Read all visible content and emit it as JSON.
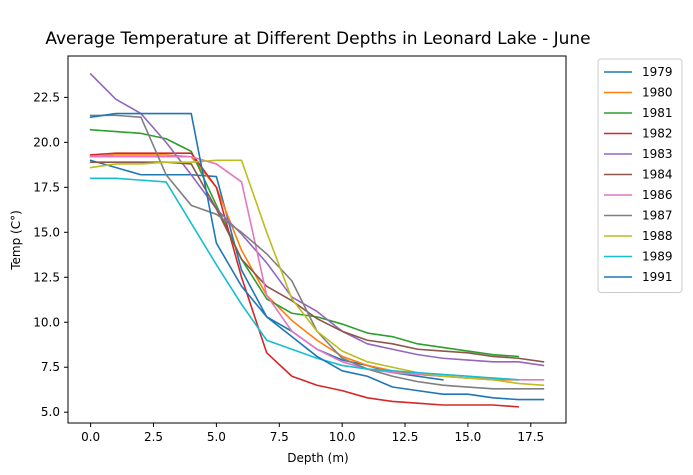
{
  "chart_data": {
    "type": "line",
    "title": "Average Temperature at Different Depths in Leonard Lake - June",
    "xlabel": "Depth (m)",
    "ylabel": "Temp (C°)",
    "xlim": [
      -0.9,
      18.9
    ],
    "ylim": [
      4.4,
      24.8
    ],
    "xticks": [
      0.0,
      2.5,
      5.0,
      7.5,
      10.0,
      12.5,
      15.0,
      17.5
    ],
    "xtick_labels": [
      "0.0",
      "2.5",
      "5.0",
      "7.5",
      "10.0",
      "12.5",
      "15.0",
      "17.5"
    ],
    "yticks": [
      5.0,
      7.5,
      10.0,
      12.5,
      15.0,
      17.5,
      20.0,
      22.5
    ],
    "ytick_labels": [
      "5.0",
      "7.5",
      "10.0",
      "12.5",
      "15.0",
      "17.5",
      "20.0",
      "22.5"
    ],
    "grid": false,
    "legend_position": "outside-right",
    "series": [
      {
        "name": "1979",
        "color": "#1f77b4",
        "x": [
          0,
          1,
          2,
          3,
          4,
          5,
          6,
          7,
          8,
          9,
          10,
          11,
          12,
          13,
          14
        ],
        "y": [
          19.0,
          18.6,
          18.2,
          18.2,
          18.2,
          18.1,
          12.9,
          10.3,
          9.5,
          8.5,
          7.9,
          7.6,
          7.2,
          7.0,
          6.8
        ]
      },
      {
        "name": "1980",
        "color": "#ff7f0e",
        "x": [
          0,
          1,
          2,
          3,
          4,
          5,
          6,
          7,
          8,
          9,
          10,
          11,
          12,
          13,
          14,
          15,
          16,
          17
        ],
        "y": [
          19.2,
          19.3,
          19.3,
          19.3,
          19.2,
          17.5,
          14.0,
          11.5,
          10.1,
          9.0,
          8.1,
          7.6,
          7.3,
          7.1,
          7.0,
          6.9,
          6.8,
          6.8
        ]
      },
      {
        "name": "1981",
        "color": "#2ca02c",
        "x": [
          0,
          1,
          2,
          3,
          4,
          5,
          6,
          7,
          8,
          9,
          10,
          11,
          12,
          13,
          14,
          15,
          16,
          17
        ],
        "y": [
          20.7,
          20.6,
          20.5,
          20.2,
          19.5,
          16.5,
          13.5,
          11.3,
          10.5,
          10.3,
          9.9,
          9.4,
          9.2,
          8.8,
          8.6,
          8.4,
          8.2,
          8.1
        ]
      },
      {
        "name": "1982",
        "color": "#d62728",
        "x": [
          0,
          1,
          2,
          3,
          4,
          5,
          6,
          7,
          8,
          9,
          10,
          11,
          12,
          13,
          14,
          15,
          16,
          17
        ],
        "y": [
          19.3,
          19.4,
          19.4,
          19.4,
          19.4,
          17.5,
          12.5,
          8.3,
          7.0,
          6.5,
          6.2,
          5.8,
          5.6,
          5.5,
          5.4,
          5.4,
          5.4,
          5.3
        ]
      },
      {
        "name": "1983",
        "color": "#9467bd",
        "x": [
          0,
          1,
          2,
          3,
          4,
          5,
          6,
          7,
          8,
          9,
          10,
          11,
          12,
          13,
          14,
          15,
          16,
          17,
          18
        ],
        "y": [
          23.8,
          22.4,
          21.6,
          20.0,
          18.2,
          16.3,
          14.9,
          13.3,
          11.4,
          10.6,
          9.5,
          8.8,
          8.5,
          8.2,
          8.0,
          7.9,
          7.8,
          7.8,
          7.6
        ]
      },
      {
        "name": "1984",
        "color": "#8c564b",
        "x": [
          0,
          1,
          2,
          3,
          4,
          5,
          6,
          7,
          8,
          9,
          10,
          11,
          12,
          13,
          14,
          15,
          16,
          17,
          18
        ],
        "y": [
          18.9,
          18.9,
          18.9,
          18.9,
          18.8,
          16.3,
          13.5,
          12.0,
          11.2,
          10.2,
          9.5,
          9.0,
          8.8,
          8.5,
          8.4,
          8.3,
          8.1,
          8.0,
          7.8
        ]
      },
      {
        "name": "1986",
        "color": "#e377c2",
        "x": [
          0,
          1,
          2,
          3,
          4,
          5,
          6,
          7,
          8,
          9,
          10,
          11,
          12,
          13,
          14,
          15,
          16,
          17,
          18
        ],
        "y": [
          19.2,
          19.2,
          19.2,
          19.2,
          19.2,
          18.8,
          17.8,
          11.5,
          9.5,
          8.5,
          7.8,
          7.4,
          7.2,
          7.1,
          7.0,
          6.9,
          6.9,
          6.8,
          6.8
        ]
      },
      {
        "name": "1987",
        "color": "#7f7f7f",
        "x": [
          0,
          1,
          2,
          3,
          4,
          5,
          6,
          7,
          8,
          9,
          10,
          11,
          12,
          13,
          14,
          15,
          16,
          17,
          18
        ],
        "y": [
          21.5,
          21.5,
          21.4,
          18.2,
          16.5,
          16.0,
          15.0,
          13.8,
          12.3,
          9.5,
          8.0,
          7.4,
          7.0,
          6.7,
          6.5,
          6.4,
          6.3,
          6.3,
          6.3
        ]
      },
      {
        "name": "1988",
        "color": "#bcbd22",
        "x": [
          0,
          1,
          2,
          3,
          4,
          5,
          6,
          7,
          8,
          9,
          10,
          11,
          12,
          13,
          14,
          15,
          16,
          17,
          18
        ],
        "y": [
          18.6,
          18.8,
          18.8,
          18.9,
          18.9,
          19.0,
          19.0,
          15.0,
          11.3,
          9.5,
          8.4,
          7.8,
          7.5,
          7.2,
          7.0,
          6.9,
          6.8,
          6.6,
          6.5
        ]
      },
      {
        "name": "1989",
        "color": "#17becf",
        "x": [
          0,
          1,
          2,
          3,
          4,
          5,
          6,
          7,
          8,
          9,
          10,
          11,
          12,
          13,
          14,
          15,
          16,
          17
        ],
        "y": [
          18.0,
          18.0,
          17.9,
          17.8,
          15.5,
          13.2,
          11.0,
          9.0,
          8.5,
          8.0,
          7.6,
          7.4,
          7.3,
          7.2,
          7.1,
          7.0,
          6.9,
          6.8
        ]
      },
      {
        "name": "1991",
        "color": "#1f77b4",
        "x": [
          0,
          1,
          2,
          3,
          4,
          5,
          6,
          7,
          8,
          9,
          10,
          11,
          12,
          13,
          14,
          15,
          16,
          17,
          18
        ],
        "y": [
          21.4,
          21.6,
          21.6,
          21.6,
          21.6,
          14.4,
          12.0,
          10.3,
          9.2,
          8.1,
          7.3,
          7.0,
          6.4,
          6.2,
          6.0,
          6.0,
          5.8,
          5.7,
          5.7
        ]
      }
    ]
  }
}
